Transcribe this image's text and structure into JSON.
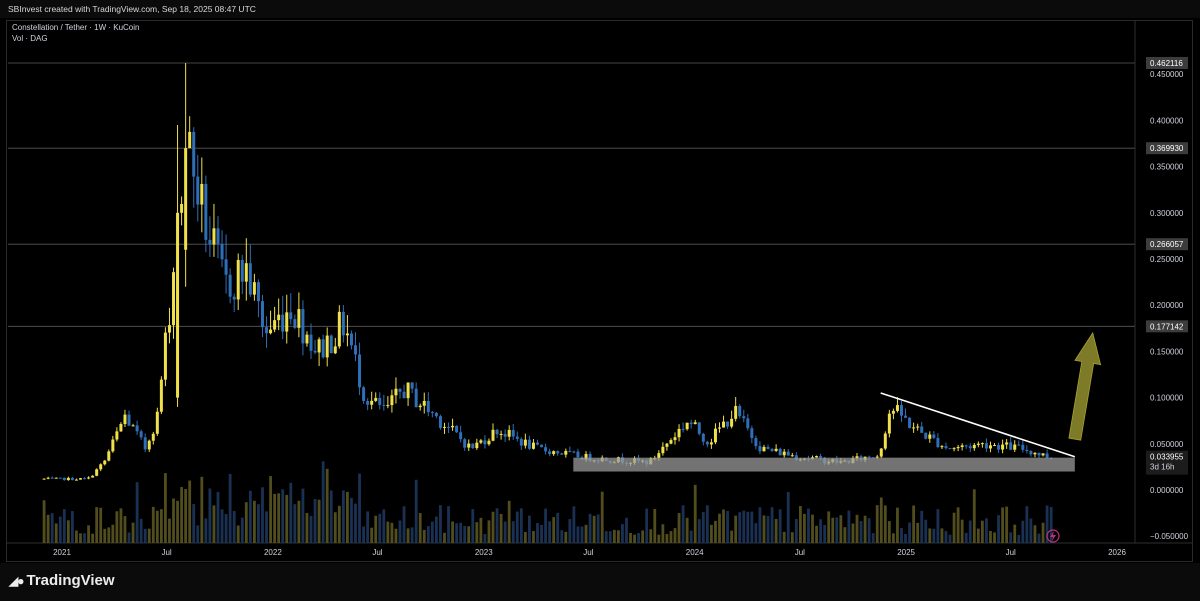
{
  "header": {
    "credit": "SBInvest created with TradingView.com, Sep 18, 2025 08:47 UTC"
  },
  "legend": {
    "symbol_line": "Constellation / Tether · 1W · KuCoin",
    "volume_line": "Vol · DAG"
  },
  "footer": {
    "brand": "TradingView"
  },
  "colors": {
    "up": "#f0e04a",
    "down": "#2f6fb8",
    "bg": "#000000",
    "zone": "#9a9a9a",
    "arrow": "#7d7a28",
    "trend": "#ffffff"
  },
  "chart_data": {
    "type": "candlestick",
    "title": "",
    "xlabel": "",
    "ylabel": "",
    "ylim": [
      -0.05,
      0.47
    ],
    "x_ticks": [
      "2021",
      "Jul",
      "2022",
      "Jul",
      "2023",
      "Jul",
      "2024",
      "Jul",
      "2025",
      "Jul",
      "2026"
    ],
    "y_ticks": [
      0.45,
      0.4,
      0.35,
      0.3,
      0.25,
      0.2,
      0.15,
      0.1,
      0.05,
      0.0,
      -0.05
    ],
    "y_tick_labels": [
      "0.450000",
      "0.400000",
      "0.350000",
      "0.300000",
      "0.250000",
      "0.200000",
      "0.150000",
      "0.100000",
      "0.050000",
      "0.000000",
      "−0.050000"
    ],
    "horizontal_levels": [
      {
        "value": 0.462116,
        "label": "0.462116"
      },
      {
        "value": 0.36993,
        "label": "0.369930"
      },
      {
        "value": 0.266057,
        "label": "0.266057"
      },
      {
        "value": 0.177142,
        "label": "0.177142"
      }
    ],
    "last_price": {
      "value": 0.033955,
      "label": "0.033955",
      "countdown": "3d 16h"
    },
    "anchors": [
      [
        "2020-12-01",
        0.012
      ],
      [
        "2021-02-15",
        0.012
      ],
      [
        "2021-03-15",
        0.03
      ],
      [
        "2021-04-20",
        0.08
      ],
      [
        "2021-05-25",
        0.045
      ],
      [
        "2021-06-15",
        0.08
      ],
      [
        "2021-07-10",
        0.22
      ],
      [
        "2021-08-05",
        0.38
      ],
      [
        "2021-09-05",
        0.29
      ],
      [
        "2021-10-10",
        0.22
      ],
      [
        "2021-11-15",
        0.24
      ],
      [
        "2021-12-20",
        0.17
      ],
      [
        "2022-02-01",
        0.2
      ],
      [
        "2022-03-20",
        0.15
      ],
      [
        "2022-05-05",
        0.18
      ],
      [
        "2022-06-10",
        0.1
      ],
      [
        "2022-07-15",
        0.085
      ],
      [
        "2022-08-15",
        0.11
      ],
      [
        "2022-10-10",
        0.08
      ],
      [
        "2022-12-10",
        0.045
      ],
      [
        "2023-01-25",
        0.065
      ],
      [
        "2023-04-01",
        0.045
      ],
      [
        "2023-07-01",
        0.035
      ],
      [
        "2023-10-15",
        0.03
      ],
      [
        "2023-12-20",
        0.075
      ],
      [
        "2024-01-25",
        0.052
      ],
      [
        "2024-03-10",
        0.085
      ],
      [
        "2024-04-25",
        0.045
      ],
      [
        "2024-07-01",
        0.036
      ],
      [
        "2024-09-10",
        0.03
      ],
      [
        "2024-11-15",
        0.038
      ],
      [
        "2024-12-05",
        0.09
      ],
      [
        "2025-01-20",
        0.065
      ],
      [
        "2025-03-15",
        0.045
      ],
      [
        "2025-05-20",
        0.05
      ],
      [
        "2025-07-20",
        0.045
      ],
      [
        "2025-09-15",
        0.034
      ]
    ],
    "candles": [
      {
        "date": "2021-08-02",
        "o": 0.26,
        "h": 0.462116,
        "l": 0.22,
        "c": 0.37
      },
      {
        "date": "2021-07-19",
        "o": 0.1,
        "h": 0.395,
        "l": 0.09,
        "c": 0.3
      }
    ],
    "annotations": {
      "support_zone": {
        "from": "2023-06-05",
        "to": "2025-10-20",
        "low": 0.02,
        "high": 0.035
      },
      "trendline": {
        "from": [
          "2024-11-18",
          0.105
        ],
        "to": [
          "2025-10-20",
          0.036
        ]
      },
      "arrow": {
        "from": [
          "2025-10-20",
          0.055
        ],
        "to": [
          "2025-11-20",
          0.17
        ]
      }
    }
  }
}
